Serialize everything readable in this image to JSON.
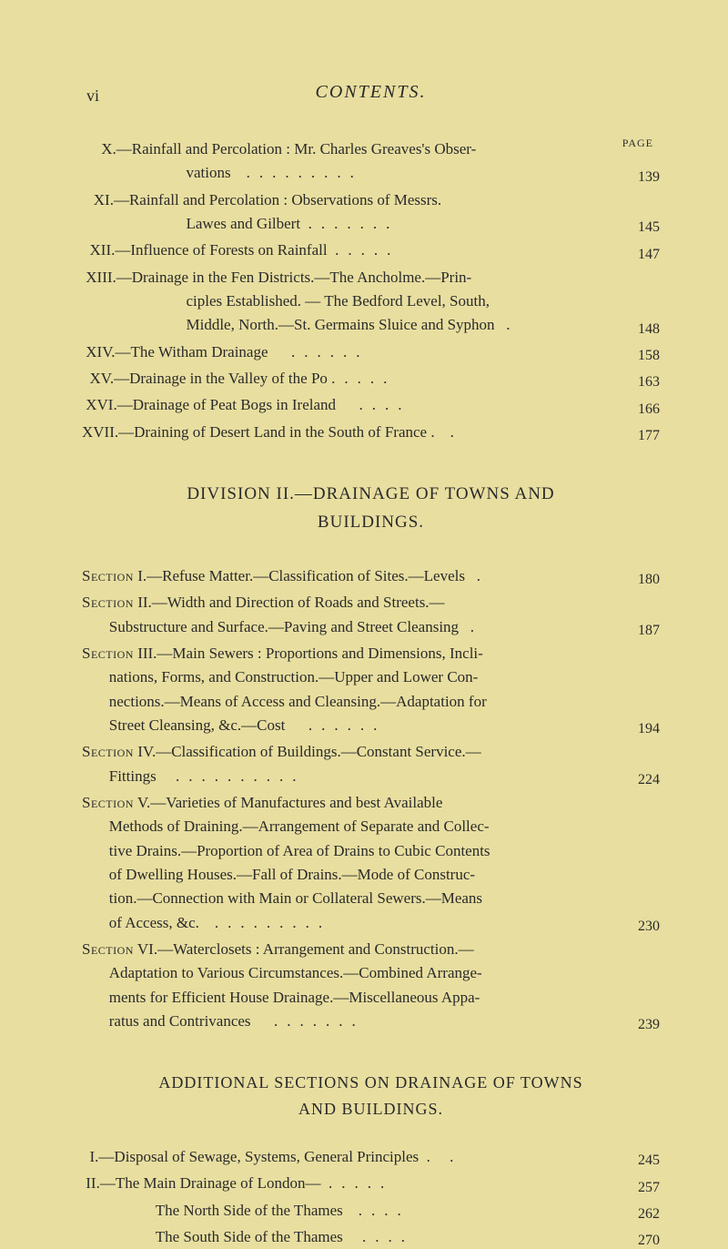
{
  "page": {
    "roman_numeral": "vi",
    "header": "CONTENTS.",
    "page_label": "PAGE"
  },
  "typography": {
    "body_fontsize": 17,
    "header_fontsize": 20,
    "division_fontsize": 19,
    "additional_fontsize": 18,
    "page_label_fontsize": 12,
    "line_height": 1.55
  },
  "colors": {
    "background": "#e8dea0",
    "text": "#2a2a2a"
  },
  "entries_part1": [
    {
      "roman": "X.",
      "text": "—Rainfall and Percolation : Mr. Charles Greaves's Observations",
      "page": "139"
    },
    {
      "roman": "XI.",
      "text": "—Rainfall and Percolation : Observations of Messrs. Lawes and Gilbert",
      "page": "145"
    },
    {
      "roman": "XII.",
      "text": "—Influence of Forests on Rainfall",
      "page": "147"
    },
    {
      "roman": "XIII.",
      "text": "—Drainage in the Fen Districts.—The Ancholme.—Principles Established. — The Bedford Level, South, Middle, North.—St. Germains Sluice and Syphon",
      "page": "148"
    },
    {
      "roman": "XIV.",
      "text": "—The Witham Drainage",
      "page": "158"
    },
    {
      "roman": "XV.",
      "text": "—Drainage in the Valley of the Po",
      "page": "163"
    },
    {
      "roman": "XVI.",
      "text": "—Drainage of Peat Bogs in Ireland",
      "page": "166"
    },
    {
      "roman": "XVII.",
      "text": "—Draining of Desert Land in the South of France",
      "page": "177"
    }
  ],
  "division": {
    "title": "DIVISION II.—DRAINAGE OF TOWNS AND BUILDINGS."
  },
  "sections": [
    {
      "label": "Section I.",
      "text": "—Refuse Matter.—Classification of Sites.—Levels",
      "page": "180"
    },
    {
      "label": "Section II.",
      "text": "—Width and Direction of Roads and Streets.—Substructure and Surface.—Paving and Street Cleansing",
      "page": "187"
    },
    {
      "label": "Section III.",
      "text": "—Main Sewers : Proportions and Dimensions, Inclinations, Forms, and Construction.—Upper and Lower Connections.—Means of Access and Cleansing.—Adaptation for Street Cleansing, &c.—Cost",
      "page": "194"
    },
    {
      "label": "Section IV.",
      "text": "—Classification of Buildings.—Constant Service.—Fittings",
      "page": "224"
    },
    {
      "label": "Section V.",
      "text": "—Varieties of Manufactures and best Available Methods of Draining.—Arrangement of Separate and Collective Drains.—Proportion of Area of Drains to Cubic Contents of Dwelling Houses.—Fall of Drains.—Mode of Construction.—Connection with Main or Collateral Sewers.—Means of Access, &c.",
      "page": "230"
    },
    {
      "label": "Section VI.",
      "text": "—Waterclosets : Arrangement and Construction.—Adaptation to Various Circumstances.—Combined Arrangements for Efficient House Drainage.—Miscellaneous Apparatus and Contrivances",
      "page": "239"
    }
  ],
  "additional": {
    "title": "ADDITIONAL SECTIONS ON DRAINAGE OF TOWNS AND BUILDINGS.",
    "entries": [
      {
        "roman": "I.",
        "text": "—Disposal of Sewage, Systems, General Principles",
        "page": "245"
      },
      {
        "roman": "II.",
        "text": "—The Main Drainage of London—",
        "page": "257"
      }
    ],
    "sub_entries": [
      {
        "text": "The North Side of the Thames",
        "page": "262"
      },
      {
        "text": "The South Side of the Thames",
        "page": "270"
      }
    ]
  }
}
